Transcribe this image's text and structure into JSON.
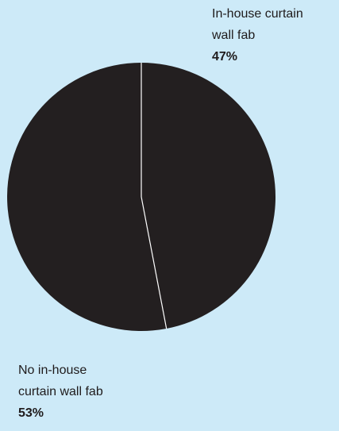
{
  "chart_data": {
    "type": "pie",
    "title": "",
    "colors": {
      "background": "#cdeaf8",
      "slice_fill": "#231f20",
      "slice_separator": "#ffffff",
      "text": "#1f1b1c"
    },
    "slices": [
      {
        "label": "In-house curtain\nwall fab",
        "value": 47,
        "value_label": "47%"
      },
      {
        "label": "No in-house\ncurtain wall fab",
        "value": 53,
        "value_label": "53%"
      }
    ]
  }
}
